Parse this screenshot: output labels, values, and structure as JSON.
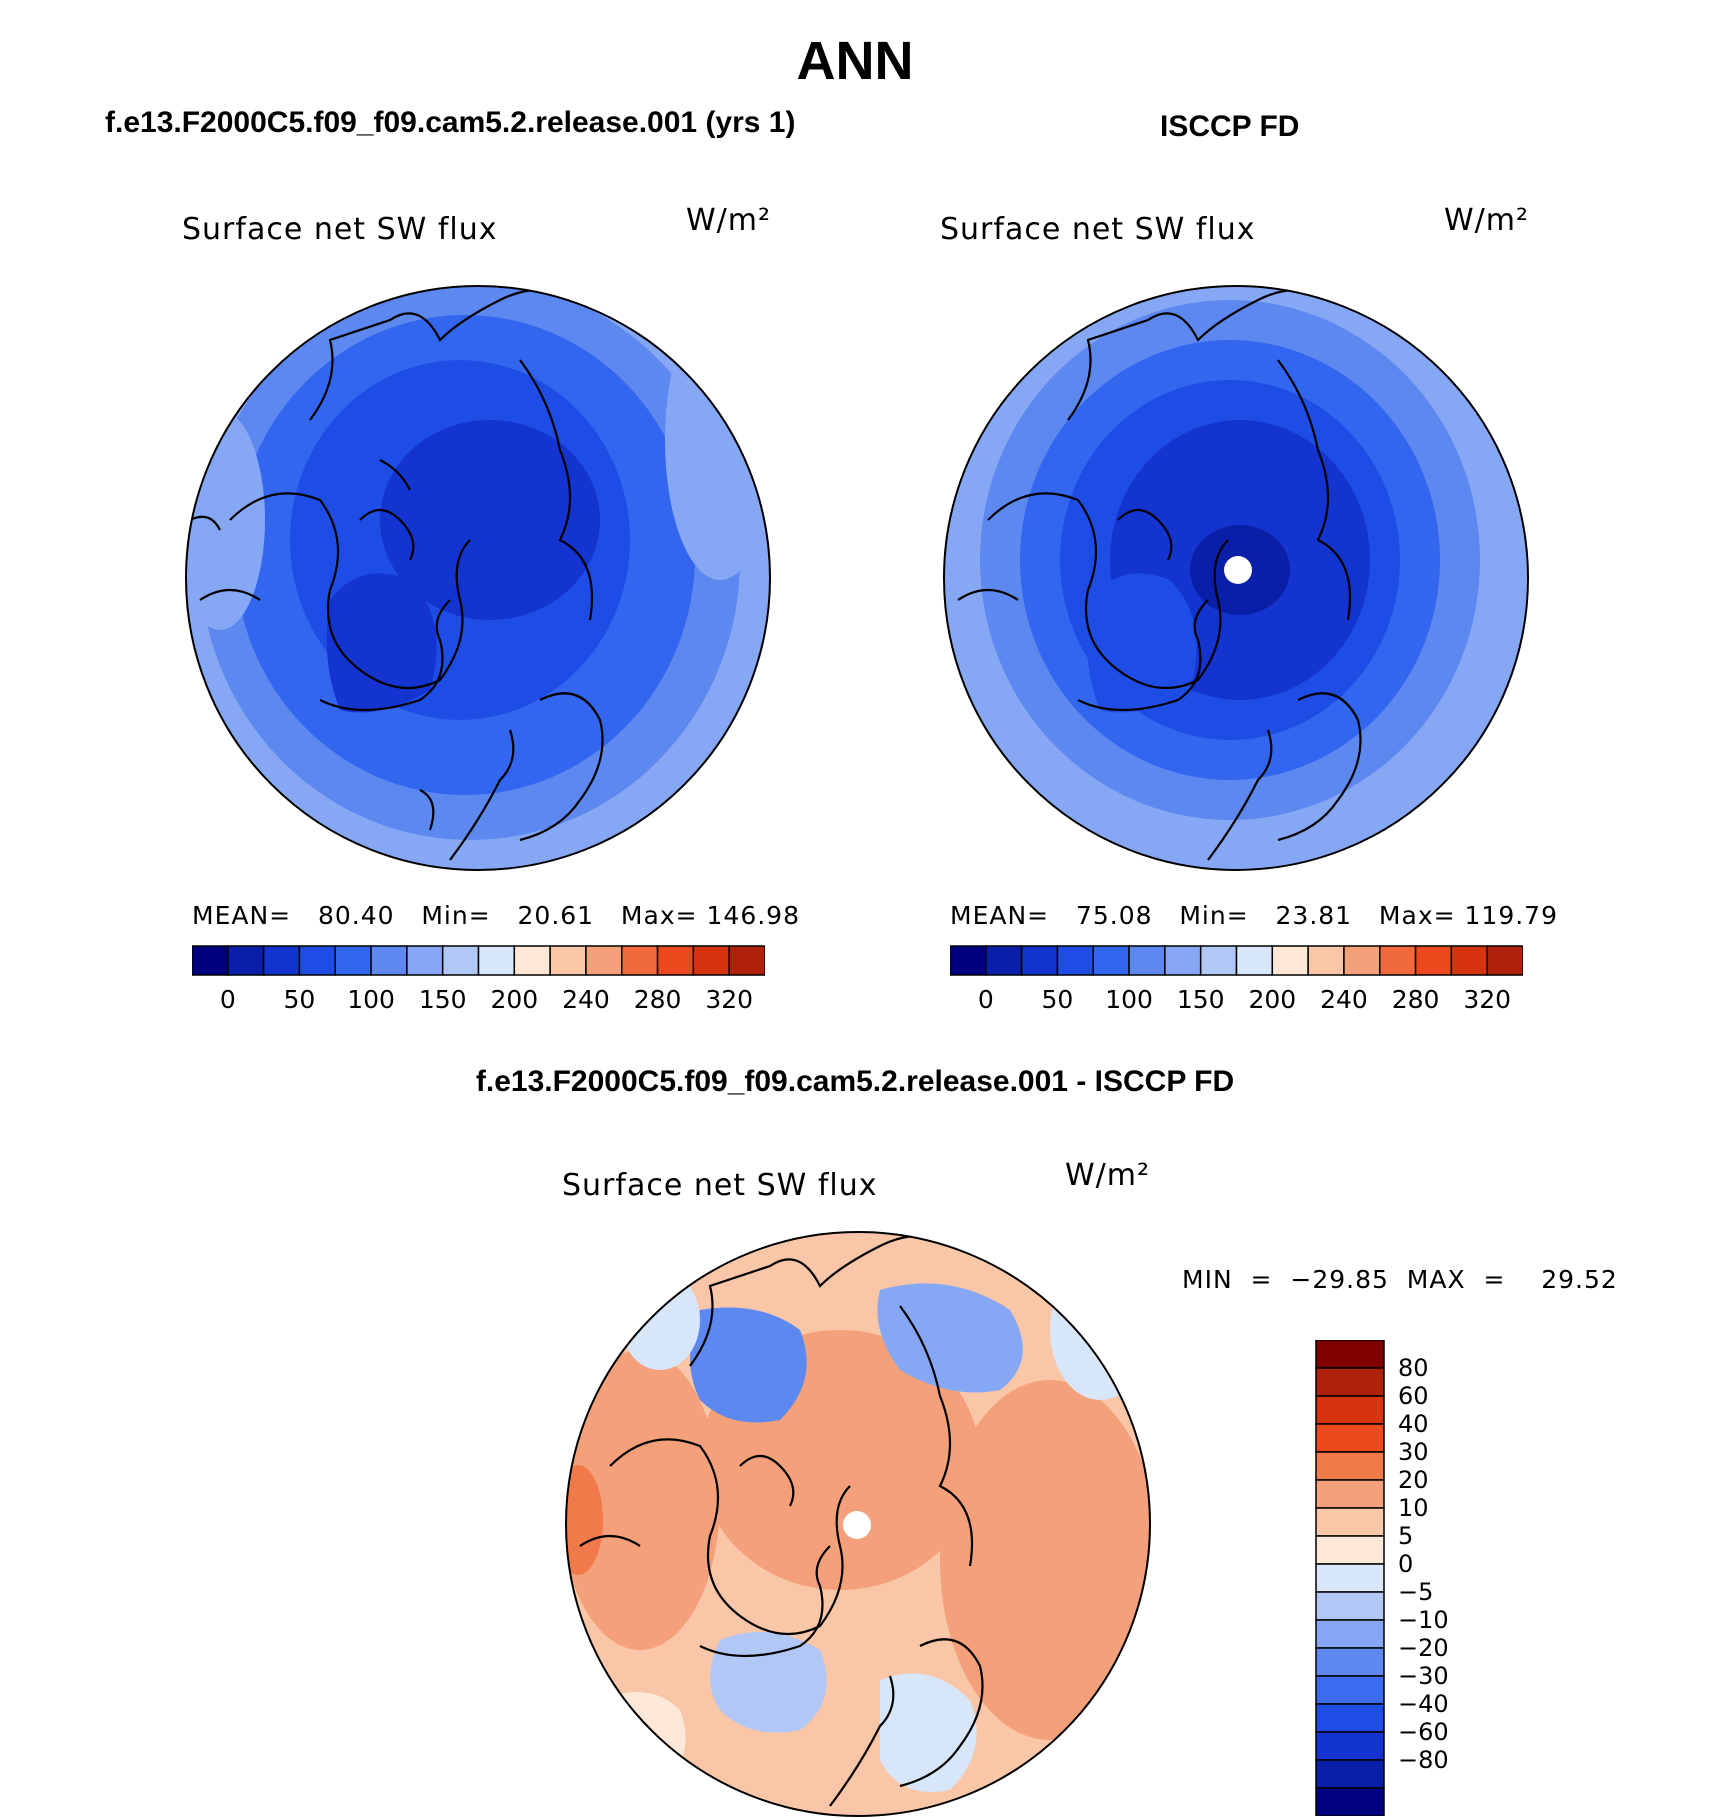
{
  "figure": {
    "title": "ANN",
    "left_header": "f.e13.F2000C5.f09_f09.cam5.2.release.001 (yrs 1)",
    "right_header": "ISCCP FD",
    "diff_header": "f.e13.F2000C5.f09_f09.cam5.2.release.001 - ISCCP FD"
  },
  "panels": {
    "model": {
      "plot_title": "Surface net SW flux",
      "units": "W/m²",
      "stats": "MEAN=   80.40   Min=   20.61   Max= 146.98"
    },
    "obs": {
      "plot_title": "Surface net SW flux",
      "units": "W/m²",
      "stats": "MEAN=   75.08   Min=   23.81   Max= 119.79"
    },
    "diff": {
      "plot_title": "Surface net SW flux",
      "units": "W/m²",
      "stats": "MIN  =  −29.85  MAX  =    29.52"
    }
  },
  "colors": {
    "abs_colorbar": [
      "#00007f",
      "#0a1fa8",
      "#1434cf",
      "#1e4de6",
      "#3366ee",
      "#5d88f0",
      "#86a7f3",
      "#b1c8f7",
      "#d8e6fa",
      "#fde8d8",
      "#f9c6a8",
      "#f4a07a",
      "#f06a3c",
      "#ec4a1e",
      "#d63410",
      "#b0210a",
      "#800000"
    ],
    "diff_colorbar": [
      "#000080",
      "#0a1fa8",
      "#1434cf",
      "#1e4de6",
      "#3b6bee",
      "#5d88f0",
      "#86a7f3",
      "#b1c8f7",
      "#d8e6fa",
      "#fde8d8",
      "#f9c6a8",
      "#f4a07a",
      "#f07a4a",
      "#ec4a1e",
      "#d63410",
      "#b0210a",
      "#800000"
    ],
    "model_fill": "#2f59e3",
    "obs_fill": "#1e3fd8",
    "diff_fill": "#f4a07a"
  },
  "chart_data": [
    {
      "type": "heatmap",
      "name": "model",
      "title": "Surface net SW flux",
      "projection": "north-polar-stereographic",
      "units": "W/m²",
      "mean": 80.4,
      "min": 20.61,
      "max": 146.98,
      "colorbar_levels": [
        0,
        25,
        50,
        75,
        100,
        125,
        150,
        175,
        200,
        220,
        240,
        260,
        280,
        300,
        320,
        340
      ],
      "colorbar_tick_labels": [
        "0",
        "50",
        "100",
        "150",
        "200",
        "240",
        "280",
        "320"
      ]
    },
    {
      "type": "heatmap",
      "name": "obs",
      "title": "Surface net SW flux",
      "projection": "north-polar-stereographic",
      "units": "W/m²",
      "mean": 75.08,
      "min": 23.81,
      "max": 119.79,
      "colorbar_levels": [
        0,
        25,
        50,
        75,
        100,
        125,
        150,
        175,
        200,
        220,
        240,
        260,
        280,
        300,
        320,
        340
      ],
      "colorbar_tick_labels": [
        "0",
        "50",
        "100",
        "150",
        "200",
        "240",
        "280",
        "320"
      ]
    },
    {
      "type": "heatmap",
      "name": "difference",
      "title": "Surface net SW flux",
      "projection": "north-polar-stereographic",
      "units": "W/m²",
      "min": -29.85,
      "max": 29.52,
      "colorbar_tick_labels": [
        "80",
        "60",
        "40",
        "30",
        "20",
        "10",
        "5",
        "0",
        "−5",
        "−10",
        "−20",
        "−30",
        "−40",
        "−60",
        "−80"
      ]
    }
  ]
}
